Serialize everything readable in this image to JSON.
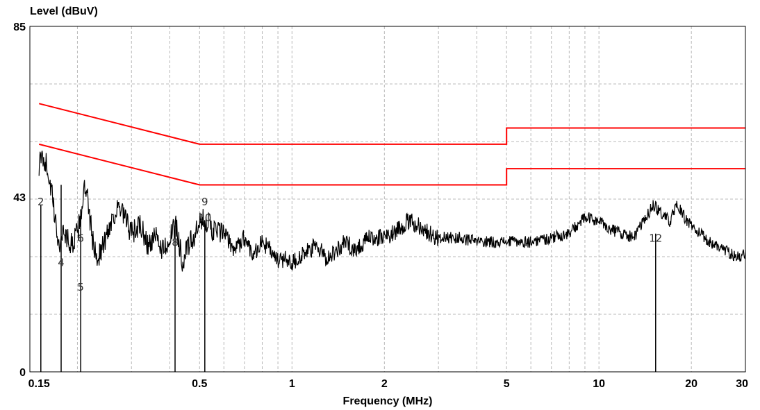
{
  "chart_data": {
    "type": "line",
    "ylabel": "Level (dBuV)",
    "xlabel": "Frequency (MHz)",
    "xscale": "log",
    "xlim": [
      0.14,
      30
    ],
    "ylim": [
      0,
      85
    ],
    "grid": true,
    "x_ticks": [
      {
        "value": 0.15,
        "label": "0.15"
      },
      {
        "value": 0.5,
        "label": "0.5"
      },
      {
        "value": 1,
        "label": "1"
      },
      {
        "value": 2,
        "label": "2"
      },
      {
        "value": 5,
        "label": "5"
      },
      {
        "value": 10,
        "label": "10"
      },
      {
        "value": 20,
        "label": "20"
      },
      {
        "value": 30,
        "label": "30"
      }
    ],
    "y_ticks": [
      {
        "value": 0,
        "label": "0"
      },
      {
        "value": 43,
        "label": "43"
      },
      {
        "value": 85,
        "label": "85"
      }
    ],
    "limit_lines": [
      {
        "color": "#ff0000",
        "points": [
          [
            0.15,
            66
          ],
          [
            0.5,
            56
          ],
          [
            5,
            56
          ],
          [
            5,
            60
          ],
          [
            30,
            60
          ]
        ]
      },
      {
        "color": "#ff0000",
        "points": [
          [
            0.15,
            56
          ],
          [
            0.5,
            46
          ],
          [
            5,
            46
          ],
          [
            5,
            50
          ],
          [
            30,
            50
          ]
        ]
      }
    ],
    "series": [
      {
        "color": "#000000",
        "points": [
          [
            0.15,
            51
          ],
          [
            0.155,
            53
          ],
          [
            0.16,
            50
          ],
          [
            0.165,
            44
          ],
          [
            0.17,
            36
          ],
          [
            0.175,
            31
          ],
          [
            0.18,
            35
          ],
          [
            0.19,
            31
          ],
          [
            0.2,
            34
          ],
          [
            0.205,
            38
          ],
          [
            0.21,
            45
          ],
          [
            0.215,
            43
          ],
          [
            0.22,
            37
          ],
          [
            0.225,
            32
          ],
          [
            0.23,
            28
          ],
          [
            0.24,
            30
          ],
          [
            0.25,
            34
          ],
          [
            0.26,
            38
          ],
          [
            0.27,
            40
          ],
          [
            0.28,
            39
          ],
          [
            0.3,
            34
          ],
          [
            0.32,
            36
          ],
          [
            0.34,
            31
          ],
          [
            0.36,
            33
          ],
          [
            0.38,
            30
          ],
          [
            0.4,
            33
          ],
          [
            0.42,
            36
          ],
          [
            0.44,
            27
          ],
          [
            0.46,
            31
          ],
          [
            0.48,
            33
          ],
          [
            0.5,
            36
          ],
          [
            0.52,
            38
          ],
          [
            0.55,
            35
          ],
          [
            0.6,
            34
          ],
          [
            0.65,
            30
          ],
          [
            0.7,
            33
          ],
          [
            0.75,
            29
          ],
          [
            0.8,
            32
          ],
          [
            0.85,
            30
          ],
          [
            0.9,
            27
          ],
          [
            0.95,
            28
          ],
          [
            1.0,
            27
          ],
          [
            1.1,
            29
          ],
          [
            1.2,
            31
          ],
          [
            1.3,
            28
          ],
          [
            1.4,
            30
          ],
          [
            1.5,
            32
          ],
          [
            1.6,
            30
          ],
          [
            1.8,
            33
          ],
          [
            2.0,
            33
          ],
          [
            2.2,
            35
          ],
          [
            2.4,
            37
          ],
          [
            2.6,
            36
          ],
          [
            2.8,
            34
          ],
          [
            3.0,
            33
          ],
          [
            3.5,
            33
          ],
          [
            4.0,
            32
          ],
          [
            4.5,
            32
          ],
          [
            5.0,
            32
          ],
          [
            6.0,
            32
          ],
          [
            7.0,
            33
          ],
          [
            8.0,
            34
          ],
          [
            9.0,
            38
          ],
          [
            10.0,
            37
          ],
          [
            11.0,
            35
          ],
          [
            12.0,
            34
          ],
          [
            13.0,
            33
          ],
          [
            14.0,
            37
          ],
          [
            15.0,
            41
          ],
          [
            16.0,
            39
          ],
          [
            17.0,
            37
          ],
          [
            18.0,
            41
          ],
          [
            19.0,
            38
          ],
          [
            20.0,
            36
          ],
          [
            22.0,
            33
          ],
          [
            24.0,
            31
          ],
          [
            26.0,
            30
          ],
          [
            28.0,
            28
          ],
          [
            30.0,
            29
          ]
        ]
      }
    ],
    "markers": [
      {
        "label": "2",
        "x": 0.152,
        "y": 41,
        "label_y": 41
      },
      {
        "label": "4",
        "x": 0.177,
        "y": 46,
        "label_y": 26
      },
      {
        "label": "5",
        "x": 0.205,
        "y": 40,
        "label_y": 20
      },
      {
        "label": "6",
        "x": 0.205,
        "y": 40,
        "label_y": 32
      },
      {
        "label": "8",
        "x": 0.416,
        "y": 36,
        "label_y": 31
      },
      {
        "label": "9",
        "x": 0.52,
        "y": 36,
        "label_y": 41
      },
      {
        "label": "10",
        "x": 0.52,
        "y": 36,
        "label_y": 37
      },
      {
        "label": "12",
        "x": 15.3,
        "y": 34,
        "label_y": 32
      }
    ]
  }
}
